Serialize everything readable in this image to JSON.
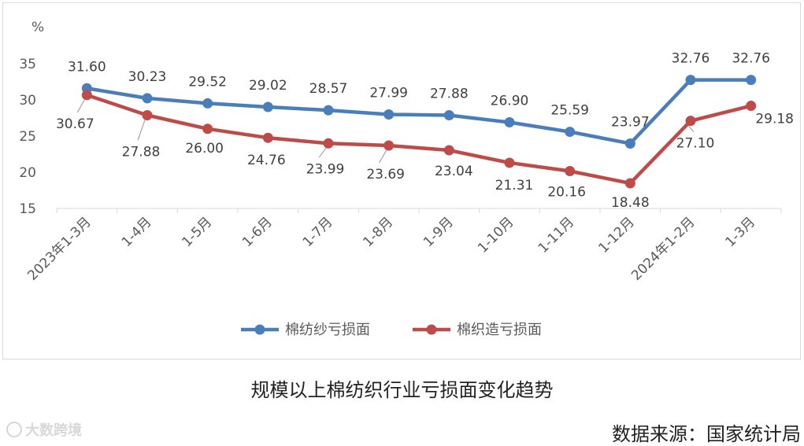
{
  "chart_data": {
    "type": "line",
    "y_unit": "%",
    "ylim": [
      15,
      35
    ],
    "yticks": [
      15,
      20,
      25,
      30,
      35
    ],
    "grid": false,
    "legend_position": "bottom",
    "categories": [
      "2023年1-3月",
      "1-4月",
      "1-5月",
      "1-6月",
      "1-7月",
      "1-8月",
      "1-9月",
      "1-10月",
      "1-11月",
      "1-12月",
      "2024年1-2月",
      "1-3月"
    ],
    "series": [
      {
        "name": "棉纺纱亏损面",
        "color": "#4a7ebb",
        "values": [
          31.6,
          30.23,
          29.52,
          29.02,
          28.57,
          27.99,
          27.88,
          26.9,
          25.59,
          23.97,
          32.76,
          32.76
        ],
        "labels": [
          "31.60",
          "30.23",
          "29.52",
          "29.02",
          "28.57",
          "27.99",
          "27.88",
          "26.90",
          "25.59",
          "23.97",
          "32.76",
          "32.76"
        ]
      },
      {
        "name": "棉织造亏损面",
        "color": "#be4b48",
        "values": [
          30.67,
          27.88,
          26.0,
          24.76,
          23.99,
          23.69,
          23.04,
          21.31,
          20.16,
          18.48,
          27.1,
          29.18
        ],
        "labels": [
          "30.67",
          "27.88",
          "26.00",
          "24.76",
          "23.99",
          "23.69",
          "23.04",
          "21.31",
          "20.16",
          "18.48",
          "27.10",
          "29.18"
        ]
      }
    ]
  },
  "caption": "规模以上棉纺织行业亏损面变化趋势",
  "source": "数据来源：国家统计局",
  "watermark": "大数跨境"
}
